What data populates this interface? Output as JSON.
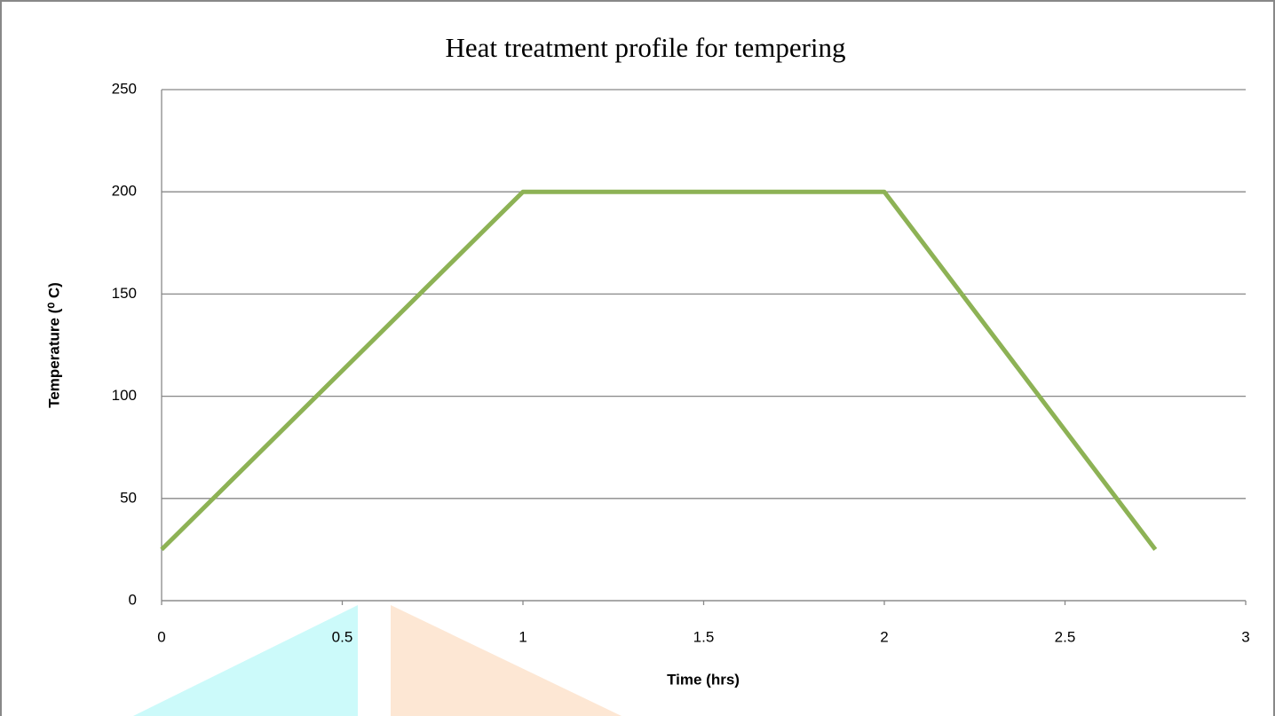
{
  "chart_data": {
    "type": "line",
    "title": "Heat treatment profile for tempering",
    "x_label": "Time (hrs)",
    "y_label": "Temperature (⁰ C)",
    "x": [
      0,
      1,
      2,
      2.75
    ],
    "series": [
      {
        "name": "Temperature",
        "color": "#8db255",
        "values": [
          25,
          200,
          200,
          25
        ]
      }
    ],
    "xlim": [
      0,
      3
    ],
    "xticks": [
      0,
      0.5,
      1,
      1.5,
      2,
      2.5,
      3
    ],
    "ylim": [
      0,
      250
    ],
    "yticks": [
      0,
      50,
      100,
      150,
      200,
      250
    ],
    "grid": true
  }
}
